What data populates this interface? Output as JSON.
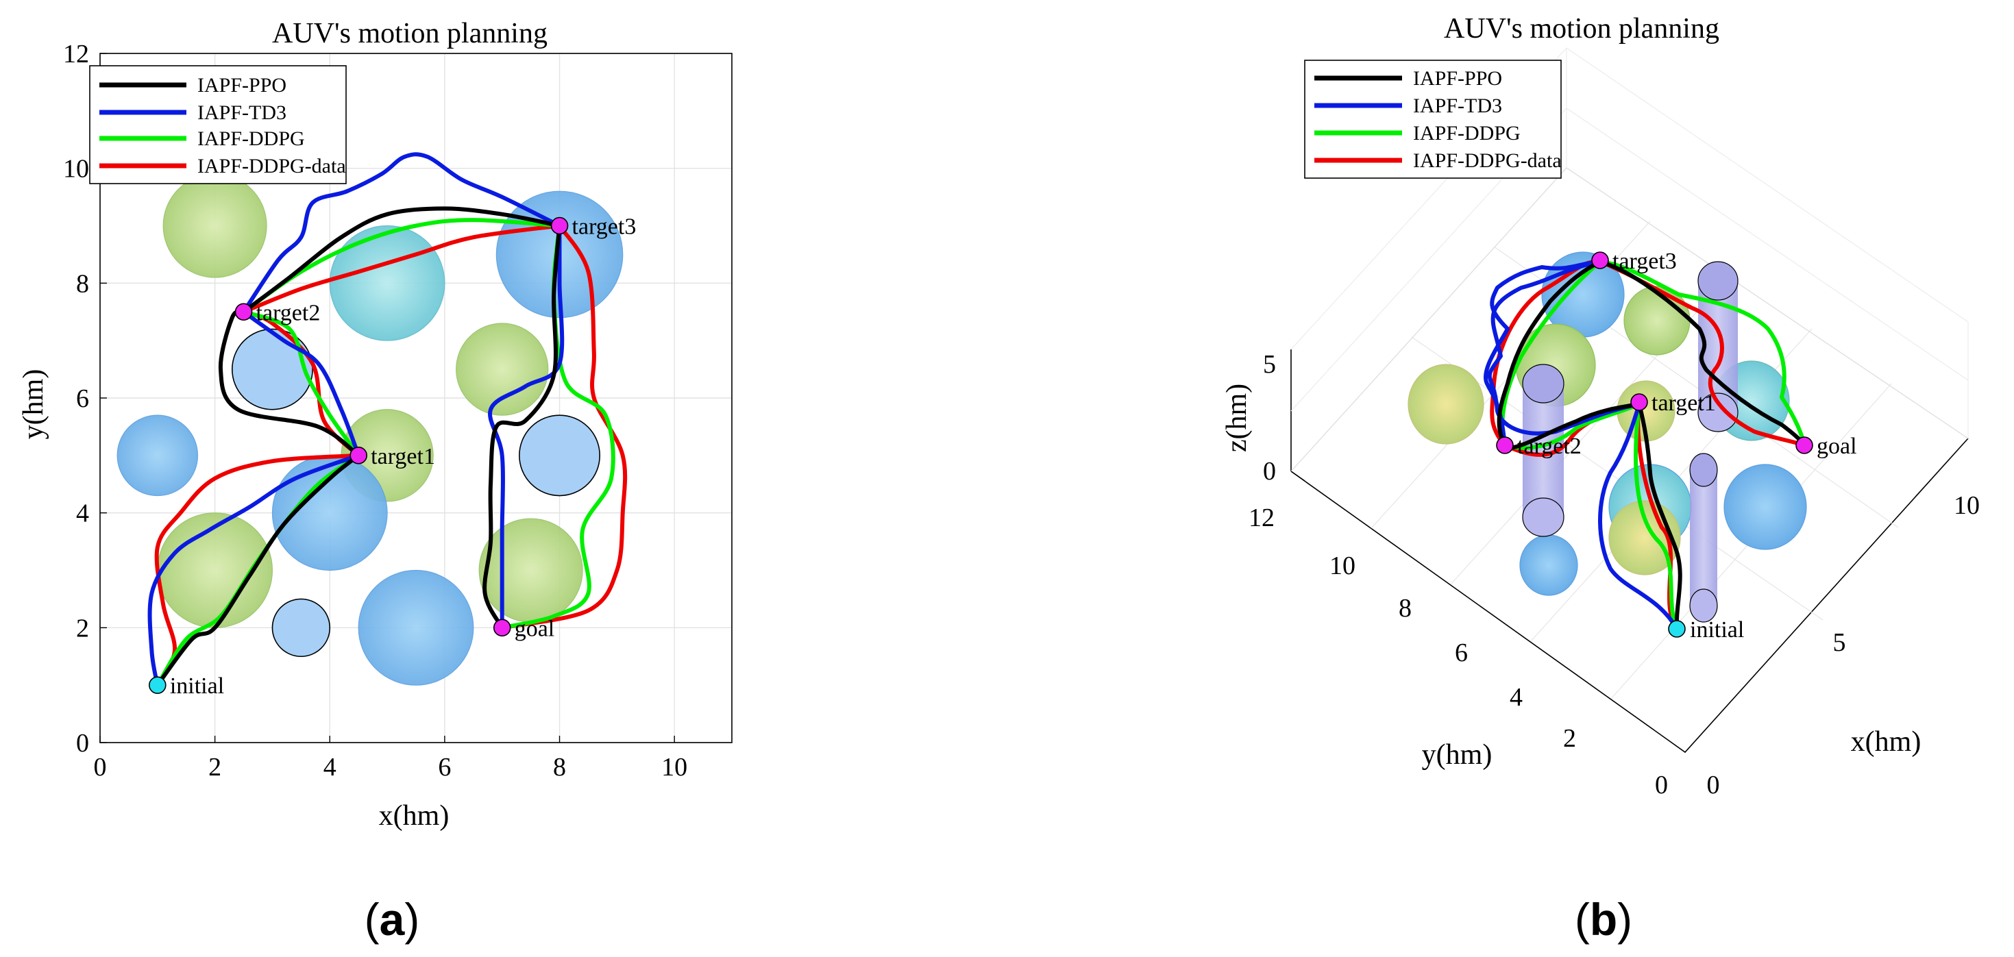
{
  "chart_data": [
    {
      "panel": "a",
      "type": "line",
      "title": "AUV's motion planning",
      "xlabel": "x(hm)",
      "ylabel": "y(hm)",
      "xlim": [
        0,
        11
      ],
      "ylim": [
        0,
        12
      ],
      "xticks": [
        "0",
        "2",
        "4",
        "6",
        "8",
        "10"
      ],
      "yticks": [
        "0",
        "2",
        "4",
        "6",
        "8",
        "10",
        "12"
      ],
      "grid": true,
      "legend": "top-left",
      "series": [
        {
          "name": "IAPF-PPO",
          "color": "#000000",
          "segments": [
            [
              [
                1,
                1
              ],
              [
                1.6,
                1.8
              ],
              [
                2,
                2
              ],
              [
                2.6,
                2.9
              ],
              [
                3.2,
                3.8
              ],
              [
                4,
                4.6
              ],
              [
                4.5,
                5
              ]
            ],
            [
              [
                4.5,
                5
              ],
              [
                3.8,
                5.5
              ],
              [
                2.4,
                5.8
              ],
              [
                2.1,
                6.5
              ],
              [
                2.3,
                7.4
              ],
              [
                2.5,
                7.5
              ]
            ],
            [
              [
                2.5,
                7.5
              ],
              [
                3.3,
                8.1
              ],
              [
                4.2,
                8.8
              ],
              [
                5,
                9.2
              ],
              [
                6,
                9.3
              ],
              [
                7,
                9.2
              ],
              [
                8,
                9
              ]
            ],
            [
              [
                8,
                9
              ],
              [
                7.9,
                7.8
              ],
              [
                7.9,
                6.4
              ],
              [
                7.4,
                5.6
              ],
              [
                6.9,
                5.5
              ],
              [
                6.8,
                4.5
              ],
              [
                6.8,
                3.5
              ],
              [
                6.7,
                2.6
              ],
              [
                7,
                2
              ]
            ]
          ]
        },
        {
          "name": "IAPF-TD3",
          "color": "#0a1be0",
          "segments": [
            [
              [
                1,
                1
              ],
              [
                0.9,
                1.6
              ],
              [
                0.9,
                2.6
              ],
              [
                1.3,
                3.3
              ],
              [
                1.9,
                3.7
              ],
              [
                2.6,
                4.1
              ],
              [
                3.4,
                4.6
              ],
              [
                4.5,
                5
              ]
            ],
            [
              [
                4.5,
                5
              ],
              [
                4.2,
                5.8
              ],
              [
                3.8,
                6.6
              ],
              [
                3.2,
                7
              ],
              [
                2.5,
                7.5
              ]
            ],
            [
              [
                2.5,
                7.5
              ],
              [
                3.1,
                8.4
              ],
              [
                3.5,
                8.8
              ],
              [
                3.7,
                9.4
              ],
              [
                4.3,
                9.6
              ],
              [
                4.9,
                9.9
              ],
              [
                5.3,
                10.2
              ],
              [
                5.7,
                10.2
              ],
              [
                6.3,
                9.8
              ],
              [
                7,
                9.5
              ],
              [
                8,
                9
              ]
            ],
            [
              [
                8,
                9
              ],
              [
                8,
                8
              ],
              [
                8,
                6.6
              ],
              [
                7.4,
                6.2
              ],
              [
                6.8,
                5.8
              ],
              [
                7,
                5
              ],
              [
                7,
                3.7
              ],
              [
                7,
                3
              ],
              [
                7,
                2
              ]
            ]
          ]
        },
        {
          "name": "IAPF-DDPG",
          "color": "#00ee00",
          "segments": [
            [
              [
                1,
                1
              ],
              [
                1.5,
                1.8
              ],
              [
                2.1,
                2.2
              ],
              [
                2.7,
                3.1
              ],
              [
                3.2,
                3.8
              ],
              [
                3.8,
                4.5
              ],
              [
                4.5,
                5
              ]
            ],
            [
              [
                4.5,
                5
              ],
              [
                4,
                5.7
              ],
              [
                3.6,
                6.4
              ],
              [
                3.3,
                7.2
              ],
              [
                2.5,
                7.5
              ]
            ],
            [
              [
                2.5,
                7.5
              ],
              [
                3.5,
                8.2
              ],
              [
                4.5,
                8.7
              ],
              [
                5.5,
                9
              ],
              [
                6.5,
                9.1
              ],
              [
                8,
                9
              ]
            ],
            [
              [
                8,
                9
              ],
              [
                7.9,
                7.8
              ],
              [
                8.1,
                6.3
              ],
              [
                8.8,
                5.7
              ],
              [
                8.9,
                4.6
              ],
              [
                8.4,
                3.7
              ],
              [
                8.5,
                2.6
              ],
              [
                7.9,
                2.2
              ],
              [
                7,
                2
              ]
            ]
          ]
        },
        {
          "name": "IAPF-DDPG-data",
          "color": "#ee0000",
          "segments": [
            [
              [
                1,
                1
              ],
              [
                1.3,
                1.6
              ],
              [
                1.1,
                2.4
              ],
              [
                1,
                3.4
              ],
              [
                1.4,
                4
              ],
              [
                2,
                4.6
              ],
              [
                3,
                4.9
              ],
              [
                4.5,
                5
              ]
            ],
            [
              [
                4.5,
                5
              ],
              [
                3.9,
                5.6
              ],
              [
                3.7,
                6.6
              ],
              [
                3,
                7.3
              ],
              [
                2.5,
                7.5
              ]
            ],
            [
              [
                2.5,
                7.5
              ],
              [
                3.5,
                7.9
              ],
              [
                4.5,
                8.2
              ],
              [
                5.5,
                8.5
              ],
              [
                6.5,
                8.8
              ],
              [
                8,
                9
              ]
            ],
            [
              [
                8,
                9
              ],
              [
                8.5,
                8.2
              ],
              [
                8.6,
                6.8
              ],
              [
                8.6,
                6
              ],
              [
                9.1,
                5
              ],
              [
                9.1,
                4
              ],
              [
                9,
                3
              ],
              [
                8.5,
                2.3
              ],
              [
                7,
                2
              ]
            ]
          ]
        }
      ],
      "obstacles": [
        {
          "x": 2,
          "y": 9,
          "r": 0.9,
          "kind": "green"
        },
        {
          "x": 5,
          "y": 8,
          "r": 1.0,
          "kind": "cyan"
        },
        {
          "x": 8,
          "y": 8.5,
          "r": 1.1,
          "kind": "blue"
        },
        {
          "x": 3,
          "y": 6.5,
          "r": 0.7,
          "kind": "plain"
        },
        {
          "x": 7,
          "y": 6.5,
          "r": 0.8,
          "kind": "green"
        },
        {
          "x": 1,
          "y": 5,
          "r": 0.7,
          "kind": "blue"
        },
        {
          "x": 5,
          "y": 5,
          "r": 0.8,
          "kind": "green"
        },
        {
          "x": 8,
          "y": 5,
          "r": 0.7,
          "kind": "plain"
        },
        {
          "x": 4,
          "y": 4,
          "r": 1.0,
          "kind": "blue"
        },
        {
          "x": 2,
          "y": 3,
          "r": 1.0,
          "kind": "green"
        },
        {
          "x": 7.5,
          "y": 3,
          "r": 0.9,
          "kind": "green"
        },
        {
          "x": 3.5,
          "y": 2,
          "r": 0.5,
          "kind": "plain"
        },
        {
          "x": 5.5,
          "y": 2,
          "r": 1.0,
          "kind": "blue"
        }
      ],
      "points": [
        {
          "label": "initial",
          "x": 1,
          "y": 1,
          "color": "#22e0f0"
        },
        {
          "label": "target1",
          "x": 4.5,
          "y": 5,
          "color": "#ee22ee"
        },
        {
          "label": "target2",
          "x": 2.5,
          "y": 7.5,
          "color": "#ee22ee"
        },
        {
          "label": "target3",
          "x": 8,
          "y": 9,
          "color": "#ee22ee"
        },
        {
          "label": "goal",
          "x": 7,
          "y": 2,
          "color": "#ee22ee"
        }
      ]
    },
    {
      "panel": "b",
      "type": "line",
      "title": "AUV's motion planning",
      "xlabel": "x(hm)",
      "ylabel": "y(hm)",
      "zlabel": "z(hm)",
      "xticks": [
        "0",
        "5",
        "10"
      ],
      "yticks": [
        "0",
        "2",
        "4",
        "6",
        "8",
        "10",
        "12"
      ],
      "zticks": [
        "0",
        "5"
      ],
      "view": "3d",
      "legend": "top-left",
      "series_names": [
        "IAPF-PPO",
        "IAPF-TD3",
        "IAPF-DDPG",
        "IAPF-DDPG-data"
      ],
      "series_colors": [
        "#000000",
        "#0a1be0",
        "#00ee00",
        "#ee0000"
      ],
      "points": [
        {
          "label": "initial",
          "color": "#22e0f0"
        },
        {
          "label": "target1",
          "color": "#ee22ee"
        },
        {
          "label": "target2",
          "color": "#ee22ee"
        },
        {
          "label": "target3",
          "color": "#ee22ee"
        },
        {
          "label": "goal",
          "color": "#ee22ee"
        }
      ]
    }
  ],
  "panel_labels": [
    "a",
    "b"
  ]
}
